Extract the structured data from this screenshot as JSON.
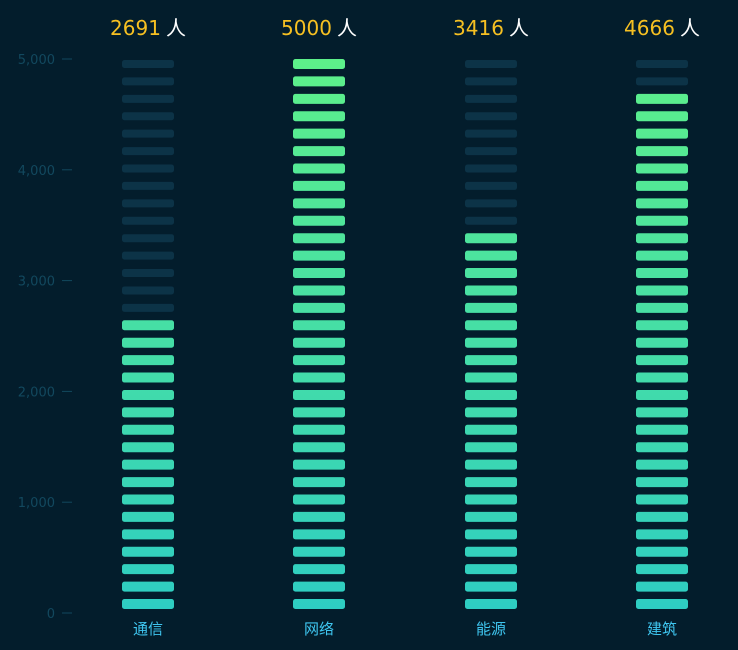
{
  "chart_data": {
    "type": "bar",
    "style": "segmented-pictorial",
    "categories": [
      "通信",
      "网络",
      "能源",
      "建筑"
    ],
    "values": [
      2691,
      5000,
      3416,
      4666
    ],
    "unit": "人",
    "ylim": [
      0,
      5000
    ],
    "yticks": [
      0,
      1000,
      2000,
      3000,
      4000,
      5000
    ],
    "ytick_labels": [
      "0",
      "1,000",
      "2,000",
      "3,000",
      "4,000",
      "5,000"
    ],
    "segments": 32,
    "grid": false,
    "legend": "none",
    "colors": {
      "background": "#031d2c",
      "empty": "#0c3347",
      "fill_bottom": "#2ecdc2",
      "fill_top": "#5df08a",
      "value": "#f6c022",
      "unit": "#ffffff",
      "category": "#3fc6f0",
      "axis": "#12485e"
    }
  }
}
